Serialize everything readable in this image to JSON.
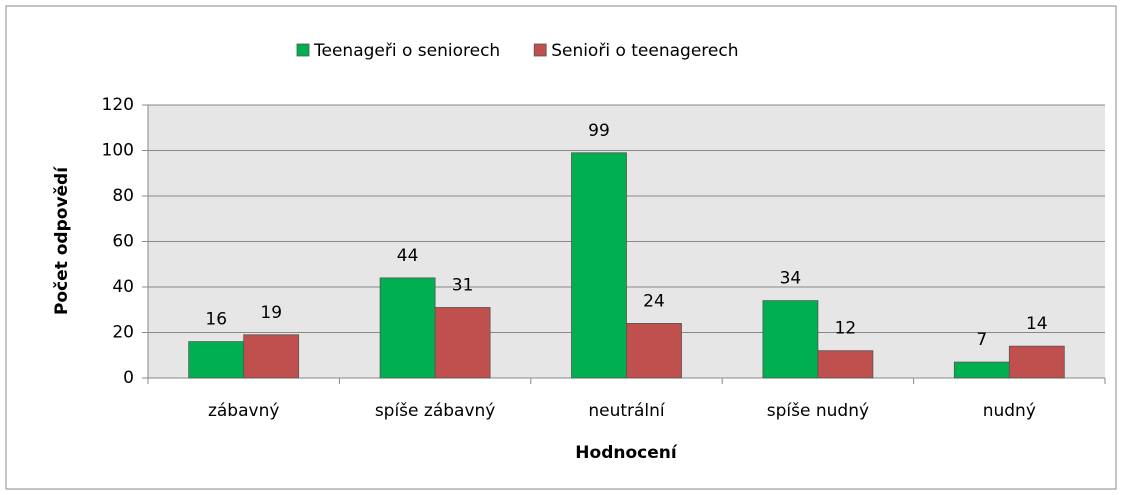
{
  "chart_data": {
    "type": "bar",
    "categories": [
      "zábavný",
      "spíše zábavný",
      "neutrální",
      "spíše nudný",
      "nudný"
    ],
    "series": [
      {
        "name": "Teenageři o seniorech",
        "color": "#00b050",
        "values": [
          16,
          44,
          99,
          34,
          7
        ]
      },
      {
        "name": "Senioři o teenagerech",
        "color": "#c0504d",
        "values": [
          19,
          31,
          24,
          12,
          14
        ]
      }
    ],
    "xlabel": "Hodnocení",
    "ylabel": "Počet odpovědí",
    "ylim": [
      0,
      120
    ],
    "yticks": [
      0,
      20,
      40,
      60,
      80,
      100,
      120
    ],
    "grid": true,
    "legend": "top"
  }
}
